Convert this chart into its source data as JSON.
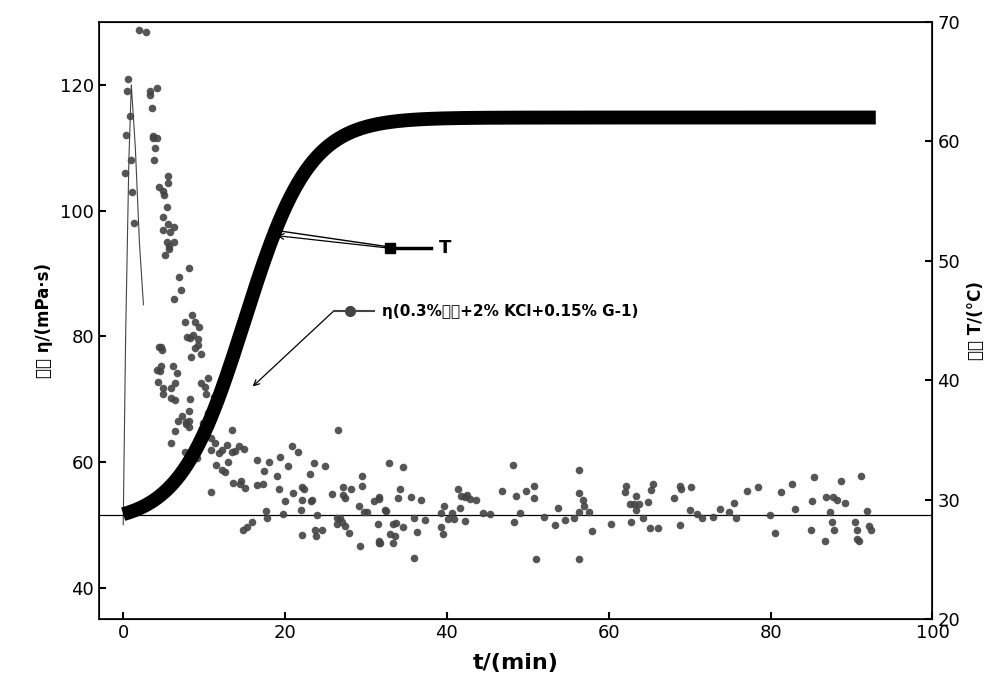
{
  "title": "",
  "xlabel": "t/(min)",
  "ylabel_left": "粘度 η/(mPa·s)",
  "ylabel_right": "温度 T/(°C)",
  "xlim": [
    0,
    100
  ],
  "ylim_left": [
    35,
    130
  ],
  "ylim_right": [
    20,
    70
  ],
  "yticks_left": [
    40,
    60,
    80,
    100,
    120
  ],
  "yticks_right": [
    20,
    30,
    40,
    50,
    60,
    70
  ],
  "xticks": [
    0,
    20,
    40,
    60,
    80,
    100
  ],
  "hline_y": 51.5,
  "T_color": "#000000",
  "eta_color": "#444444",
  "legend_T": "T",
  "legend_eta": "η(0.3%主剂+2% KCl+0.15% G-1)",
  "background_color": "#ffffff",
  "T_linewidth": 10,
  "scatter_size": 30,
  "xlim_display": [
    -3,
    93
  ]
}
